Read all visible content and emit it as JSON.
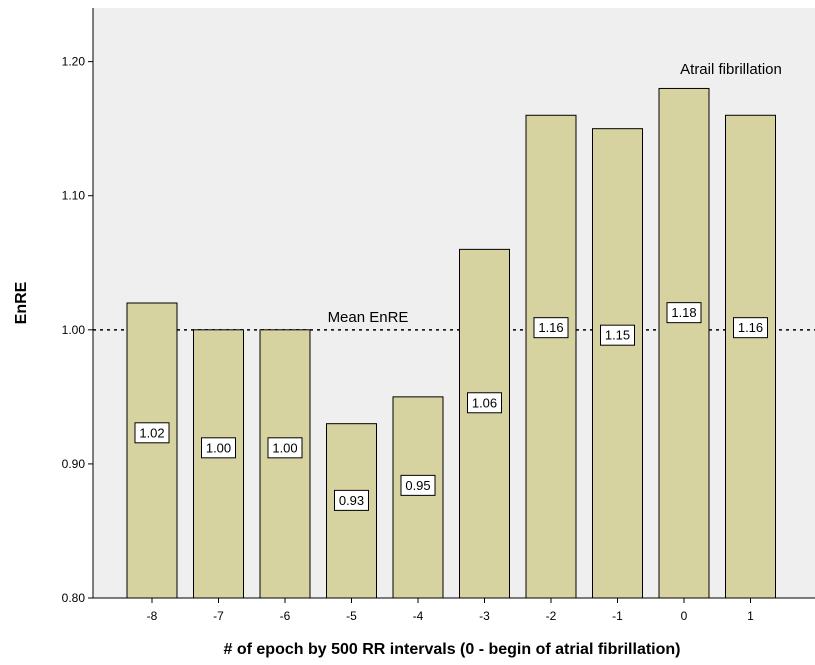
{
  "chart_data": {
    "type": "bar",
    "title": "",
    "xlabel": "# of epoch by 500 RR intervals (0 - begin of atrial fibrillation)",
    "ylabel": "EnRE",
    "categories": [
      "-8",
      "-7",
      "-6",
      "-5",
      "-4",
      "-3",
      "-2",
      "-1",
      "0",
      "1"
    ],
    "values": [
      1.02,
      1.0,
      1.0,
      0.93,
      0.95,
      1.06,
      1.16,
      1.15,
      1.18,
      1.16
    ],
    "data_labels": [
      "1.02",
      "1.00",
      "1.00",
      "0.93",
      "0.95",
      "1.06",
      "1.16",
      "1.15",
      "1.18",
      "1.16"
    ],
    "ylim": [
      0.8,
      1.24
    ],
    "yticks": [
      0.8,
      0.9,
      1.0,
      1.1,
      1.2
    ],
    "ytick_labels": [
      "0.80",
      "0.90",
      "1.00",
      "1.10",
      "1.20"
    ],
    "grid": false,
    "reference_line": {
      "value": 1.0,
      "style": "dotted",
      "label": "Mean EnRE"
    },
    "annotations": [
      {
        "text": "Atrail fibrillation",
        "near_category": "0"
      }
    ],
    "colors": {
      "bar_fill": "#D6D3A0",
      "bar_stroke": "#000000",
      "plot_background": "#EFEFEF",
      "label_box_fill": "#FFFFFF"
    }
  }
}
